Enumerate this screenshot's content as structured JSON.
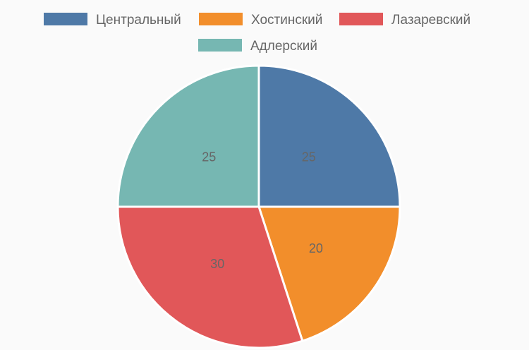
{
  "chart_data": {
    "type": "pie",
    "categories": [
      "Центральный",
      "Хостинский",
      "Лазаревский",
      "Адлерский"
    ],
    "values": [
      25,
      20,
      30,
      25
    ],
    "colors": [
      "#4e79a7",
      "#f28e2b",
      "#e15759",
      "#76b7b2"
    ],
    "legend": "top",
    "title": ""
  }
}
